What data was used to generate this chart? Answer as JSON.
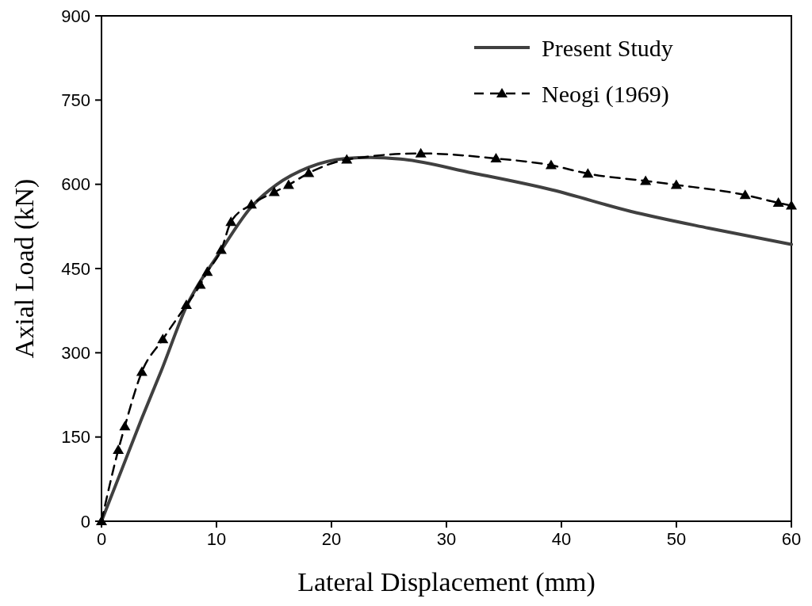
{
  "chart_data": {
    "type": "line",
    "xlabel": "Lateral Displacement (mm)",
    "ylabel": "Axial Load (kN)",
    "xlim": [
      0,
      60
    ],
    "xticks": [
      0,
      10,
      20,
      30,
      40,
      50,
      60
    ],
    "ylim": [
      0,
      900
    ],
    "yticks": [
      0,
      150,
      300,
      450,
      600,
      750,
      900
    ],
    "grid": false,
    "legend": "top right",
    "series": [
      {
        "name": "Present Study",
        "color": "#404040",
        "line_style": "solid",
        "marker": "none",
        "x": [
          0,
          1.8,
          3.5,
          5.2,
          7.4,
          10.3,
          13.0,
          15.2,
          18.0,
          21.3,
          23.4,
          26.0,
          32.3,
          39.2,
          46.0,
          52.8,
          60
        ],
        "values": [
          0,
          94,
          183,
          268,
          383,
          479,
          559,
          599,
          630,
          646,
          648,
          645,
          620,
          590,
          552,
          522,
          493
        ]
      },
      {
        "name": "Neogi (1969)",
        "color": "#000000",
        "line_style": "dashed",
        "marker": "triangle",
        "x": [
          0,
          1.46,
          2.03,
          3.51,
          5.33,
          7.38,
          8.59,
          9.2,
          10.41,
          11.26,
          13.03,
          15.02,
          16.27,
          18.02,
          21.33,
          27.77,
          34.31,
          39.1,
          42.3,
          47.32,
          49.99,
          55.98,
          58.87,
          60
        ],
        "values": [
          0,
          127,
          169,
          266,
          324,
          385,
          421,
          444,
          483,
          533,
          564,
          586,
          599,
          620,
          644,
          655,
          646,
          634,
          619,
          606,
          599,
          581,
          567,
          562
        ]
      }
    ]
  }
}
